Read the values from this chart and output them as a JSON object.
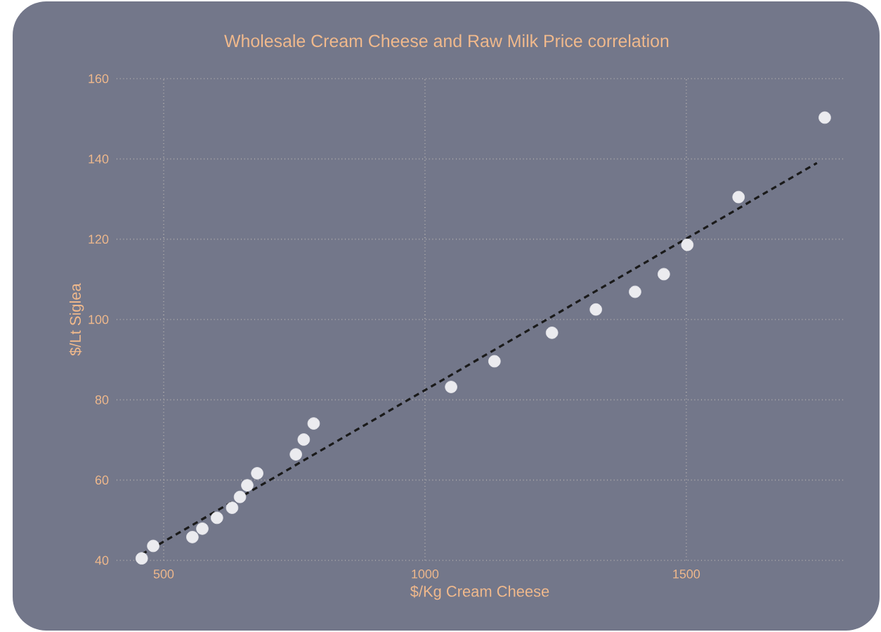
{
  "chart_data": {
    "type": "scatter",
    "title": "Wholesale Cream Cheese and Raw Milk Price correlation",
    "xlabel": "$/Kg Cream Cheese",
    "ylabel": "$/Lt Siglea",
    "xlim": [
      410,
      1800
    ],
    "ylim": [
      40,
      160
    ],
    "xticks": [
      500,
      1000,
      1500
    ],
    "yticks": [
      40,
      60,
      80,
      100,
      120,
      140,
      160
    ],
    "grid": true,
    "marker": "circle",
    "series": [
      {
        "type": "scatter",
        "color": "#ebebef",
        "x": [
          458,
          480,
          555,
          574,
          602,
          631,
          646,
          660,
          679,
          753,
          768,
          787,
          1050,
          1133,
          1243,
          1327,
          1402,
          1457,
          1502,
          1600,
          1765
        ],
        "values": [
          40.5,
          43.6,
          45.8,
          47.9,
          50.6,
          53.1,
          55.8,
          58.7,
          61.7,
          66.4,
          70.1,
          74.1,
          83.2,
          89.6,
          96.7,
          102.5,
          106.9,
          111.3,
          118.6,
          130.5,
          150.3
        ]
      },
      {
        "type": "line",
        "marker": "none",
        "color": "#1a1a1a",
        "line_style": "dashed",
        "x": [
          458,
          1750
        ],
        "values": [
          41.5,
          139
        ]
      }
    ]
  }
}
